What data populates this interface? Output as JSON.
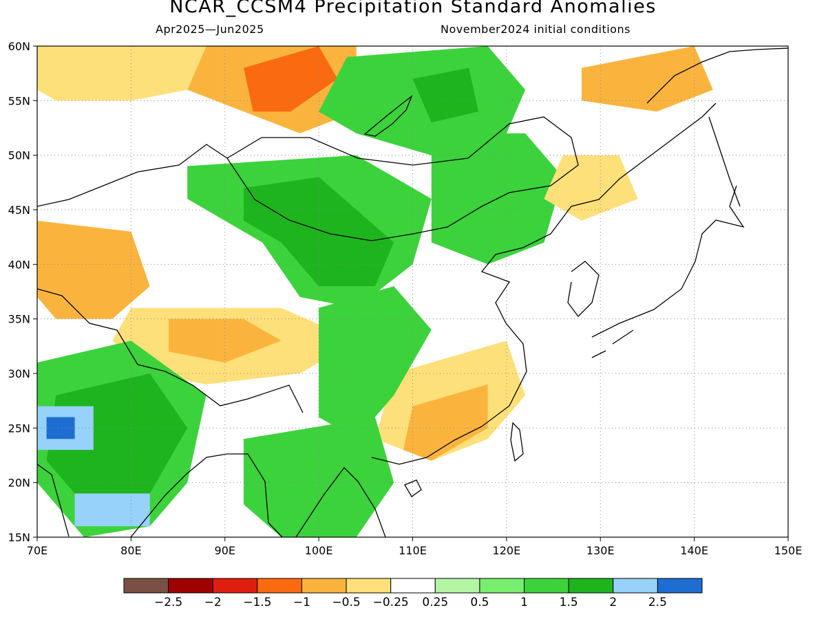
{
  "title": "NCAR_CCSM4 Precipitation Standard Anomalies",
  "subtitle_left": "Apr2025—Jun2025",
  "subtitle_right": "November2024 initial conditions",
  "map": {
    "lon_range": [
      70,
      150
    ],
    "lat_range": [
      15,
      60
    ],
    "lon_labels": [
      "70E",
      "80E",
      "90E",
      "100E",
      "110E",
      "120E",
      "130E",
      "140E",
      "150E"
    ],
    "lat_labels": [
      "60N",
      "55N",
      "50N",
      "45N",
      "40N",
      "35N",
      "30N",
      "25N",
      "20N",
      "15N"
    ],
    "grid": "dotted"
  },
  "legend": {
    "colors": [
      "#7a5045",
      "#a00000",
      "#e01e10",
      "#fa6a10",
      "#fab43e",
      "#fee07a",
      "#ffffff",
      "#b4f5a4",
      "#78ee6e",
      "#3cd23c",
      "#1eb41e",
      "#96d2fa",
      "#1e6ed2"
    ],
    "labels": [
      "−2.5",
      "−2",
      "−1.5",
      "−1",
      "−0.5",
      "−0.25",
      "0.25",
      "0.5",
      "1",
      "1.5",
      "2",
      "2.5"
    ]
  },
  "anomaly_regions": [
    {
      "name": "west-siberia-orange",
      "value": -1,
      "lonlat": [
        [
          88,
          60
        ],
        [
          104,
          60
        ],
        [
          104,
          54
        ],
        [
          98,
          52
        ],
        [
          92,
          54
        ],
        [
          86,
          56
        ]
      ]
    },
    {
      "name": "west-siberia-red",
      "value": -1.5,
      "lonlat": [
        [
          92,
          58
        ],
        [
          100,
          60
        ],
        [
          102,
          57
        ],
        [
          97,
          54
        ],
        [
          93,
          54
        ]
      ]
    },
    {
      "name": "north-kazakh-yellow",
      "value": -0.5,
      "lonlat": [
        [
          70,
          60
        ],
        [
          88,
          60
        ],
        [
          86,
          56
        ],
        [
          80,
          55
        ],
        [
          72,
          55
        ],
        [
          70,
          56
        ]
      ]
    },
    {
      "name": "lake-baikal-green",
      "value": 1,
      "lonlat": [
        [
          103,
          59
        ],
        [
          118,
          60
        ],
        [
          122,
          56
        ],
        [
          120,
          52
        ],
        [
          112,
          50
        ],
        [
          104,
          52
        ],
        [
          100,
          54
        ]
      ]
    },
    {
      "name": "baikal-dark",
      "value": 1.5,
      "lonlat": [
        [
          110,
          57
        ],
        [
          116,
          58
        ],
        [
          117,
          54
        ],
        [
          112,
          53
        ]
      ]
    },
    {
      "name": "mongolia-green",
      "value": 1,
      "lonlat": [
        [
          86,
          49
        ],
        [
          104,
          50
        ],
        [
          112,
          46
        ],
        [
          110,
          40
        ],
        [
          104,
          36
        ],
        [
          98,
          37
        ],
        [
          94,
          42
        ],
        [
          86,
          46
        ]
      ]
    },
    {
      "name": "mongolia-dark",
      "value": 1.5,
      "lonlat": [
        [
          92,
          47
        ],
        [
          100,
          48
        ],
        [
          104,
          45
        ],
        [
          108,
          42
        ],
        [
          106,
          38
        ],
        [
          100,
          38
        ],
        [
          96,
          42
        ],
        [
          92,
          44
        ]
      ]
    },
    {
      "name": "manchuria-green",
      "value": 1,
      "lonlat": [
        [
          112,
          52
        ],
        [
          122,
          52
        ],
        [
          126,
          48
        ],
        [
          124,
          42
        ],
        [
          118,
          40
        ],
        [
          112,
          42
        ]
      ]
    },
    {
      "name": "okhotsk-orange",
      "value": -1,
      "lonlat": [
        [
          128,
          58
        ],
        [
          140,
          60
        ],
        [
          142,
          56
        ],
        [
          136,
          54
        ],
        [
          128,
          55
        ]
      ]
    },
    {
      "name": "amur-orange",
      "value": -0.5,
      "lonlat": [
        [
          126,
          50
        ],
        [
          132,
          50
        ],
        [
          134,
          46
        ],
        [
          128,
          44
        ],
        [
          124,
          46
        ]
      ]
    },
    {
      "name": "central-asia-orange",
      "value": -1,
      "lonlat": [
        [
          70,
          44
        ],
        [
          80,
          43
        ],
        [
          82,
          38
        ],
        [
          78,
          35
        ],
        [
          72,
          35
        ],
        [
          70,
          37
        ]
      ]
    },
    {
      "name": "tibet-orange",
      "value": -0.5,
      "lonlat": [
        [
          80,
          36
        ],
        [
          96,
          36
        ],
        [
          104,
          33
        ],
        [
          98,
          30
        ],
        [
          88,
          29
        ],
        [
          82,
          30
        ],
        [
          78,
          33
        ]
      ]
    },
    {
      "name": "tibet-dark-orange",
      "value": -1,
      "lonlat": [
        [
          84,
          35
        ],
        [
          92,
          35
        ],
        [
          96,
          33
        ],
        [
          90,
          31
        ],
        [
          84,
          32
        ]
      ]
    },
    {
      "name": "southeast-china-orange",
      "value": -0.5,
      "lonlat": [
        [
          108,
          30
        ],
        [
          120,
          33
        ],
        [
          122,
          28
        ],
        [
          118,
          24
        ],
        [
          112,
          22
        ],
        [
          106,
          24
        ]
      ]
    },
    {
      "name": "southeast-china-dark",
      "value": -1,
      "lonlat": [
        [
          110,
          27
        ],
        [
          118,
          29
        ],
        [
          118,
          25
        ],
        [
          112,
          22
        ],
        [
          109,
          23
        ]
      ]
    },
    {
      "name": "india-green",
      "value": 1,
      "lonlat": [
        [
          70,
          31
        ],
        [
          80,
          33
        ],
        [
          88,
          28
        ],
        [
          86,
          20
        ],
        [
          82,
          16
        ],
        [
          75,
          15
        ],
        [
          70,
          20
        ]
      ]
    },
    {
      "name": "india-dark",
      "value": 1.5,
      "lonlat": [
        [
          72,
          28
        ],
        [
          82,
          30
        ],
        [
          86,
          25
        ],
        [
          82,
          19
        ],
        [
          75,
          18
        ],
        [
          71,
          22
        ]
      ]
    },
    {
      "name": "india-blue",
      "value": 2,
      "lonlat": [
        [
          70,
          27
        ],
        [
          76,
          27
        ],
        [
          76,
          23
        ],
        [
          70,
          23
        ]
      ]
    },
    {
      "name": "india-deep-blue",
      "value": 2.5,
      "lonlat": [
        [
          71,
          26
        ],
        [
          74,
          26
        ],
        [
          74,
          24
        ],
        [
          71,
          24
        ]
      ]
    },
    {
      "name": "india-south-blue",
      "value": 2,
      "lonlat": [
        [
          74,
          19
        ],
        [
          82,
          19
        ],
        [
          82,
          16
        ],
        [
          74,
          16
        ]
      ]
    },
    {
      "name": "indochina-green",
      "value": 1,
      "lonlat": [
        [
          92,
          24
        ],
        [
          106,
          26
        ],
        [
          108,
          20
        ],
        [
          104,
          15
        ],
        [
          96,
          15
        ],
        [
          92,
          18
        ]
      ]
    },
    {
      "name": "south-china-green",
      "value": 1,
      "lonlat": [
        [
          100,
          36
        ],
        [
          108,
          38
        ],
        [
          112,
          34
        ],
        [
          108,
          28
        ],
        [
          104,
          24
        ],
        [
          100,
          26
        ]
      ]
    }
  ]
}
